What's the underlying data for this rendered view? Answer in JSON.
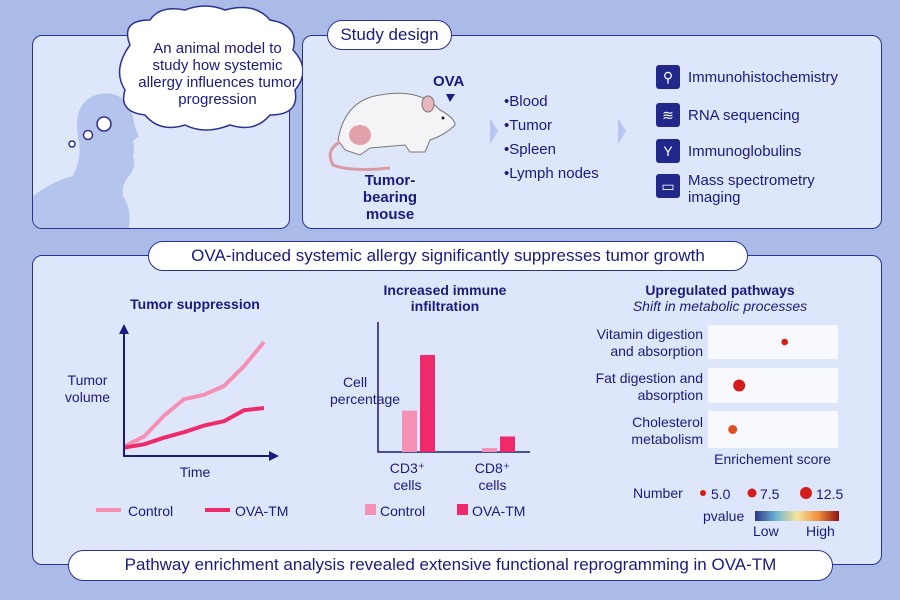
{
  "thought": {
    "text": "An animal model to study how systemic allergy influences tumor progression"
  },
  "study_design": {
    "title": "Study design",
    "injection_label": "OVA",
    "mouse_label": "Tumor-bearing mouse",
    "samples": [
      "Blood",
      "Tumor",
      "Spleen",
      "Lymph nodes"
    ],
    "methods": [
      {
        "label": "Immunohistochemistry",
        "icon": "microscope-icon"
      },
      {
        "label": "RNA sequencing",
        "icon": "dna-icon"
      },
      {
        "label": "Immunoglobulins",
        "icon": "antibody-icon"
      },
      {
        "label": "Mass spectrometry imaging",
        "icon": "monitor-icon"
      }
    ]
  },
  "results": {
    "header": "OVA-induced systemic allergy significantly suppresses tumor growth",
    "footer": "Pathway enrichment analysis revealed extensive functional reprogramming in OVA-TM"
  },
  "colors": {
    "control": "#f58fb3",
    "ova_tm": "#ef2a6b",
    "panel": "#dde6fb",
    "border": "#2b3290",
    "text": "#1b1b7c"
  },
  "chart_data": [
    {
      "type": "line",
      "title": "Tumor suppression",
      "xlabel": "Time",
      "ylabel": "Tumor volume",
      "x": [
        0,
        1,
        2,
        3,
        4,
        5,
        6,
        7
      ],
      "series": [
        {
          "name": "Control",
          "values": [
            5,
            14,
            33,
            48,
            52,
            60,
            78,
            100
          ]
        },
        {
          "name": "OVA-TM",
          "values": [
            4,
            7,
            13,
            18,
            24,
            28,
            38,
            40
          ]
        }
      ],
      "legend": "bottom"
    },
    {
      "type": "bar",
      "title": "Increased immune infiltration",
      "ylabel": "Cell percentage",
      "categories": [
        "CD3⁺ cells",
        "CD8⁺ cells"
      ],
      "series": [
        {
          "name": "Control",
          "values": [
            32,
            3
          ]
        },
        {
          "name": "OVA-TM",
          "values": [
            75,
            12
          ]
        }
      ],
      "legend": "bottom"
    },
    {
      "type": "scatter",
      "title": "Upregulated pathways",
      "subtitle": "Shift in metabolic processes",
      "xlabel": "Enrichement score",
      "categories": [
        "Vitamin digestion and absorption",
        "Fat digestion and absorption",
        "Cholesterol metabolism"
      ],
      "points": [
        {
          "pathway": "Vitamin digestion and absorption",
          "score": 0.59,
          "number": 5.0,
          "pvalue_level": "high"
        },
        {
          "pathway": "Fat digestion and absorption",
          "score": 0.24,
          "number": 12.5,
          "pvalue_level": "high"
        },
        {
          "pathway": "Cholesterol metabolism",
          "score": 0.19,
          "number": 7.5,
          "pvalue_level": "mid-high"
        }
      ],
      "size_legend": {
        "title": "Number",
        "values": [
          "5.0",
          "7.5",
          "12.5"
        ]
      },
      "color_legend": {
        "title": "pvalue",
        "low": "Low",
        "high": "High"
      }
    }
  ]
}
